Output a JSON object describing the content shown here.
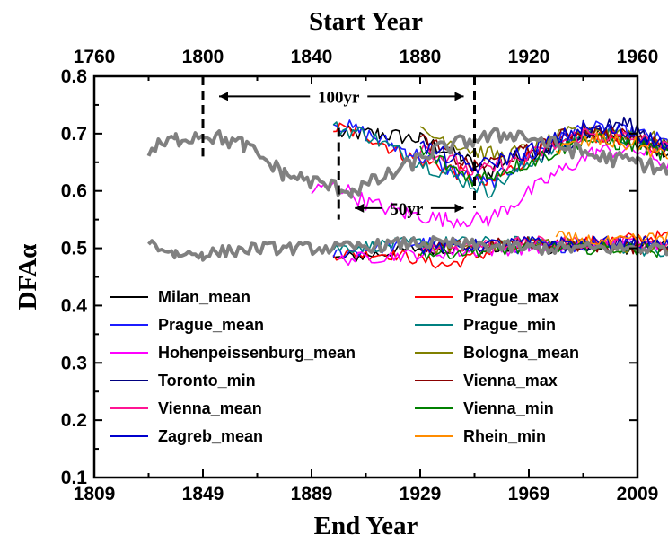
{
  "chart_data": {
    "type": "line",
    "title": "",
    "top_axis": {
      "label": "Start Year",
      "ticks": [
        1760,
        1800,
        1840,
        1880,
        1920,
        1960
      ],
      "xlim": [
        1760,
        1960
      ]
    },
    "bottom_axis": {
      "label": "End Year",
      "ticks": [
        1809,
        1849,
        1889,
        1929,
        1969,
        2009
      ],
      "xlim": [
        1809,
        2009
      ]
    },
    "ylabel": "DFAα",
    "ylim": [
      0.1,
      0.8
    ],
    "yticks": [
      0.1,
      0.2,
      0.3,
      0.4,
      0.5,
      0.6,
      0.7,
      0.8
    ],
    "annotations": [
      {
        "text": "100yr",
        "from_start_year": 1800,
        "to_start_year": 1900,
        "y": 0.765
      },
      {
        "text": "50yr",
        "from_start_year": 1850,
        "to_start_year": 1900,
        "y": 0.57
      }
    ],
    "vlines_start_year": [
      {
        "year": 1800,
        "ymin": 0.66,
        "ymax": 0.8
      },
      {
        "year": 1900,
        "ymin": 0.57,
        "ymax": 0.8
      },
      {
        "year": 1850,
        "ymin": 0.55,
        "ymax": 0.71
      }
    ],
    "legend_position": "lower-center",
    "series": [
      {
        "name": "Milan_mean",
        "color": "#000000",
        "upper": [
          [
            1850,
            0.7
          ],
          [
            1865,
            0.7
          ],
          [
            1880,
            0.69
          ],
          [
            1895,
            0.66
          ],
          [
            1905,
            0.63
          ],
          [
            1910,
            0.65
          ],
          [
            1930,
            0.68
          ],
          [
            1945,
            0.7
          ],
          [
            1960,
            0.68
          ],
          [
            1980,
            0.66
          ],
          [
            1995,
            0.62
          ]
        ],
        "lower": [
          [
            1848,
            0.48
          ],
          [
            1880,
            0.5
          ],
          [
            1920,
            0.5
          ],
          [
            1960,
            0.5
          ],
          [
            1995,
            0.51
          ]
        ]
      },
      {
        "name": "Prague_max",
        "color": "#ff0000",
        "upper": [
          [
            1848,
            0.71
          ],
          [
            1860,
            0.7
          ],
          [
            1875,
            0.66
          ],
          [
            1890,
            0.64
          ],
          [
            1905,
            0.61
          ],
          [
            1920,
            0.66
          ],
          [
            1940,
            0.7
          ],
          [
            1960,
            0.69
          ],
          [
            1980,
            0.66
          ],
          [
            1995,
            0.63
          ]
        ],
        "lower": [
          [
            1848,
            0.49
          ],
          [
            1870,
            0.49
          ],
          [
            1890,
            0.47
          ],
          [
            1910,
            0.5
          ],
          [
            1940,
            0.51
          ],
          [
            1965,
            0.52
          ],
          [
            1985,
            0.52
          ],
          [
            1995,
            0.51
          ]
        ]
      },
      {
        "name": "Prague_mean",
        "color": "#1c1cff",
        "upper": [
          [
            1848,
            0.72
          ],
          [
            1860,
            0.7
          ],
          [
            1875,
            0.67
          ],
          [
            1890,
            0.64
          ],
          [
            1905,
            0.61
          ],
          [
            1920,
            0.66
          ],
          [
            1940,
            0.71
          ],
          [
            1960,
            0.7
          ],
          [
            1980,
            0.67
          ],
          [
            1995,
            0.63
          ]
        ],
        "lower": [
          [
            1848,
            0.49
          ],
          [
            1880,
            0.51
          ],
          [
            1920,
            0.5
          ],
          [
            1960,
            0.51
          ],
          [
            1995,
            0.5
          ]
        ]
      },
      {
        "name": "Prague_min",
        "color": "#008080",
        "upper": [
          [
            1848,
            0.71
          ],
          [
            1860,
            0.7
          ],
          [
            1875,
            0.66
          ],
          [
            1890,
            0.63
          ],
          [
            1905,
            0.6
          ],
          [
            1920,
            0.65
          ],
          [
            1940,
            0.7
          ],
          [
            1960,
            0.69
          ],
          [
            1980,
            0.66
          ],
          [
            1995,
            0.62
          ]
        ],
        "lower": [
          [
            1848,
            0.5
          ],
          [
            1880,
            0.51
          ],
          [
            1920,
            0.51
          ],
          [
            1960,
            0.5
          ],
          [
            1990,
            0.47
          ],
          [
            1995,
            0.48
          ]
        ]
      },
      {
        "name": "Hohenpeissenburg_mean",
        "color": "#ff00ff",
        "upper": [
          [
            1840,
            0.6
          ],
          [
            1850,
            0.61
          ],
          [
            1860,
            0.58
          ],
          [
            1875,
            0.56
          ],
          [
            1890,
            0.55
          ],
          [
            1905,
            0.55
          ],
          [
            1915,
            0.58
          ],
          [
            1930,
            0.63
          ],
          [
            1945,
            0.67
          ],
          [
            1960,
            0.67
          ],
          [
            1975,
            0.64
          ],
          [
            1995,
            0.59
          ]
        ],
        "lower": [
          [
            1850,
            0.48
          ],
          [
            1880,
            0.49
          ],
          [
            1920,
            0.5
          ],
          [
            1960,
            0.51
          ],
          [
            1995,
            0.49
          ]
        ]
      },
      {
        "name": "Bologna_mean",
        "color": "#808000",
        "upper": [
          [
            1880,
            0.7
          ],
          [
            1890,
            0.69
          ],
          [
            1900,
            0.67
          ],
          [
            1910,
            0.66
          ],
          [
            1925,
            0.68
          ],
          [
            1940,
            0.71
          ],
          [
            1960,
            0.7
          ],
          [
            1980,
            0.67
          ],
          [
            1990,
            0.69
          ],
          [
            1997,
            0.67
          ]
        ],
        "lower": [
          [
            1880,
            0.5
          ],
          [
            1920,
            0.51
          ],
          [
            1960,
            0.5
          ],
          [
            1995,
            0.51
          ]
        ]
      },
      {
        "name": "Toronto_min",
        "color": "#000080",
        "upper": [
          [
            1925,
            0.66
          ],
          [
            1940,
            0.7
          ],
          [
            1955,
            0.72
          ],
          [
            1970,
            0.68
          ],
          [
            1985,
            0.65
          ],
          [
            1995,
            0.62
          ]
        ],
        "lower": [
          [
            1925,
            0.5
          ],
          [
            1955,
            0.51
          ],
          [
            1980,
            0.5
          ],
          [
            1995,
            0.49
          ]
        ]
      },
      {
        "name": "Vienna_max",
        "color": "#8b0000",
        "upper": [
          [
            1880,
            0.69
          ],
          [
            1900,
            0.64
          ],
          [
            1920,
            0.67
          ],
          [
            1940,
            0.71
          ],
          [
            1960,
            0.69
          ],
          [
            1980,
            0.66
          ],
          [
            1995,
            0.62
          ]
        ],
        "lower": [
          [
            1880,
            0.5
          ],
          [
            1920,
            0.51
          ],
          [
            1960,
            0.5
          ],
          [
            1995,
            0.51
          ]
        ]
      },
      {
        "name": "Vienna_mean",
        "color": "#ff1493",
        "upper": [
          [
            1880,
            0.68
          ],
          [
            1900,
            0.63
          ],
          [
            1920,
            0.66
          ],
          [
            1940,
            0.7
          ],
          [
            1960,
            0.69
          ],
          [
            1980,
            0.66
          ],
          [
            1995,
            0.62
          ]
        ],
        "lower": [
          [
            1880,
            0.5
          ],
          [
            1920,
            0.51
          ],
          [
            1960,
            0.51
          ],
          [
            1995,
            0.5
          ]
        ]
      },
      {
        "name": "Vienna_min",
        "color": "#008000",
        "upper": [
          [
            1880,
            0.67
          ],
          [
            1900,
            0.62
          ],
          [
            1920,
            0.65
          ],
          [
            1940,
            0.69
          ],
          [
            1960,
            0.68
          ],
          [
            1980,
            0.65
          ],
          [
            1995,
            0.61
          ]
        ],
        "lower": [
          [
            1880,
            0.49
          ],
          [
            1920,
            0.5
          ],
          [
            1960,
            0.5
          ],
          [
            1985,
            0.48
          ],
          [
            1995,
            0.5
          ]
        ]
      },
      {
        "name": "Zagreb_mean",
        "color": "#0000cd",
        "upper": [
          [
            1880,
            0.68
          ],
          [
            1900,
            0.64
          ],
          [
            1920,
            0.67
          ],
          [
            1940,
            0.71
          ],
          [
            1960,
            0.7
          ],
          [
            1980,
            0.66
          ],
          [
            1995,
            0.62
          ]
        ],
        "lower": [
          [
            1880,
            0.5
          ],
          [
            1920,
            0.51
          ],
          [
            1960,
            0.51
          ],
          [
            1995,
            0.5
          ]
        ]
      },
      {
        "name": "Rhein_min",
        "color": "#ff8c00",
        "upper": [
          [
            1930,
            0.67
          ],
          [
            1945,
            0.69
          ],
          [
            1960,
            0.68
          ],
          [
            1980,
            0.64
          ],
          [
            1995,
            0.61
          ]
        ],
        "lower": [
          [
            1930,
            0.52
          ],
          [
            1950,
            0.51
          ],
          [
            1970,
            0.52
          ],
          [
            1990,
            0.53
          ],
          [
            1997,
            0.52
          ]
        ]
      },
      {
        "color": "#808080",
        "upper": [
          [
            1780,
            0.67
          ],
          [
            1790,
            0.69
          ],
          [
            1800,
            0.7
          ],
          [
            1815,
            0.68
          ],
          [
            1830,
            0.63
          ],
          [
            1845,
            0.61
          ],
          [
            1855,
            0.6
          ],
          [
            1870,
            0.63
          ],
          [
            1885,
            0.67
          ],
          [
            1900,
            0.69
          ],
          [
            1915,
            0.7
          ],
          [
            1930,
            0.68
          ],
          [
            1945,
            0.66
          ],
          [
            1960,
            0.65
          ],
          [
            1975,
            0.63
          ],
          [
            1990,
            0.63
          ]
        ],
        "lower": [
          [
            1780,
            0.51
          ],
          [
            1790,
            0.49
          ],
          [
            1800,
            0.49
          ],
          [
            1820,
            0.5
          ],
          [
            1850,
            0.5
          ],
          [
            1880,
            0.51
          ],
          [
            1920,
            0.5
          ],
          [
            1960,
            0.5
          ],
          [
            1990,
            0.5
          ]
        ]
      }
    ]
  }
}
